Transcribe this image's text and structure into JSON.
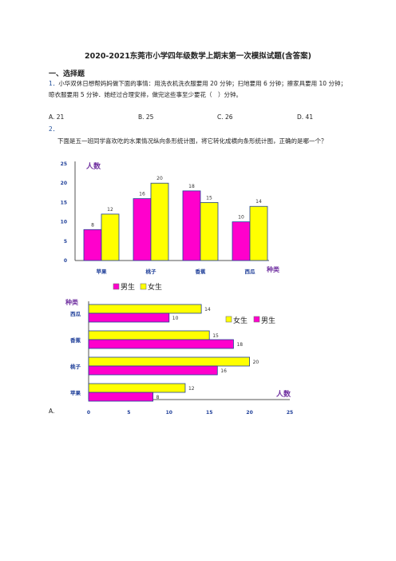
{
  "paper": {
    "title": "2020-2021东莞市小学四年级数学上期末第一次模拟试题(含答案)",
    "section": "一、选择题",
    "q1": {
      "num": "1．",
      "text": "小华双休日想帮妈妈做下面的事情：用洗衣机洗衣服要用 20 分钟；扫地要用 6 分钟；擦家具要用 10 分钟；晾衣服要用 5 分钟．她经过合理安排，做完这些事至少要花（　）分钟。",
      "options": [
        "A. 21",
        "B. 25",
        "C. 26",
        "D. 41"
      ]
    },
    "q2": {
      "num": "2．",
      "text": "下面是五一班同学喜欢吃的水果情况纵向条形统计图，将它转化成横向条形统计图，正确的是哪一个？"
    },
    "answer_label": "A."
  },
  "chart_data": [
    {
      "type": "bar",
      "orientation": "vertical",
      "ylabel": "人数",
      "xlabel": "种类",
      "categories": [
        "苹果",
        "桃子",
        "香蕉",
        "西瓜"
      ],
      "series": [
        {
          "name": "男生",
          "values": [
            8,
            16,
            18,
            10
          ],
          "color": "#ff00cc"
        },
        {
          "name": "女生",
          "values": [
            12,
            20,
            15,
            14
          ],
          "color": "#ffff00"
        }
      ],
      "ylim": [
        0,
        25
      ],
      "yticks": [
        "0",
        "5",
        "10",
        "15",
        "20",
        "25"
      ],
      "legend": "bottom",
      "grid": false
    },
    {
      "type": "bar",
      "orientation": "horizontal",
      "ylabel": "种类",
      "xlabel": "人数",
      "categories": [
        "西瓜",
        "香蕉",
        "桃子",
        "苹果"
      ],
      "series": [
        {
          "name": "女生",
          "values": [
            14,
            15,
            20,
            12
          ],
          "color": "#ffff00"
        },
        {
          "name": "男生",
          "values": [
            10,
            18,
            16,
            8
          ],
          "color": "#ff00cc"
        }
      ],
      "xlim": [
        0,
        25
      ],
      "xticks": [
        "0",
        "5",
        "10",
        "15",
        "20",
        "25"
      ],
      "legend": "right",
      "grid": false
    }
  ]
}
